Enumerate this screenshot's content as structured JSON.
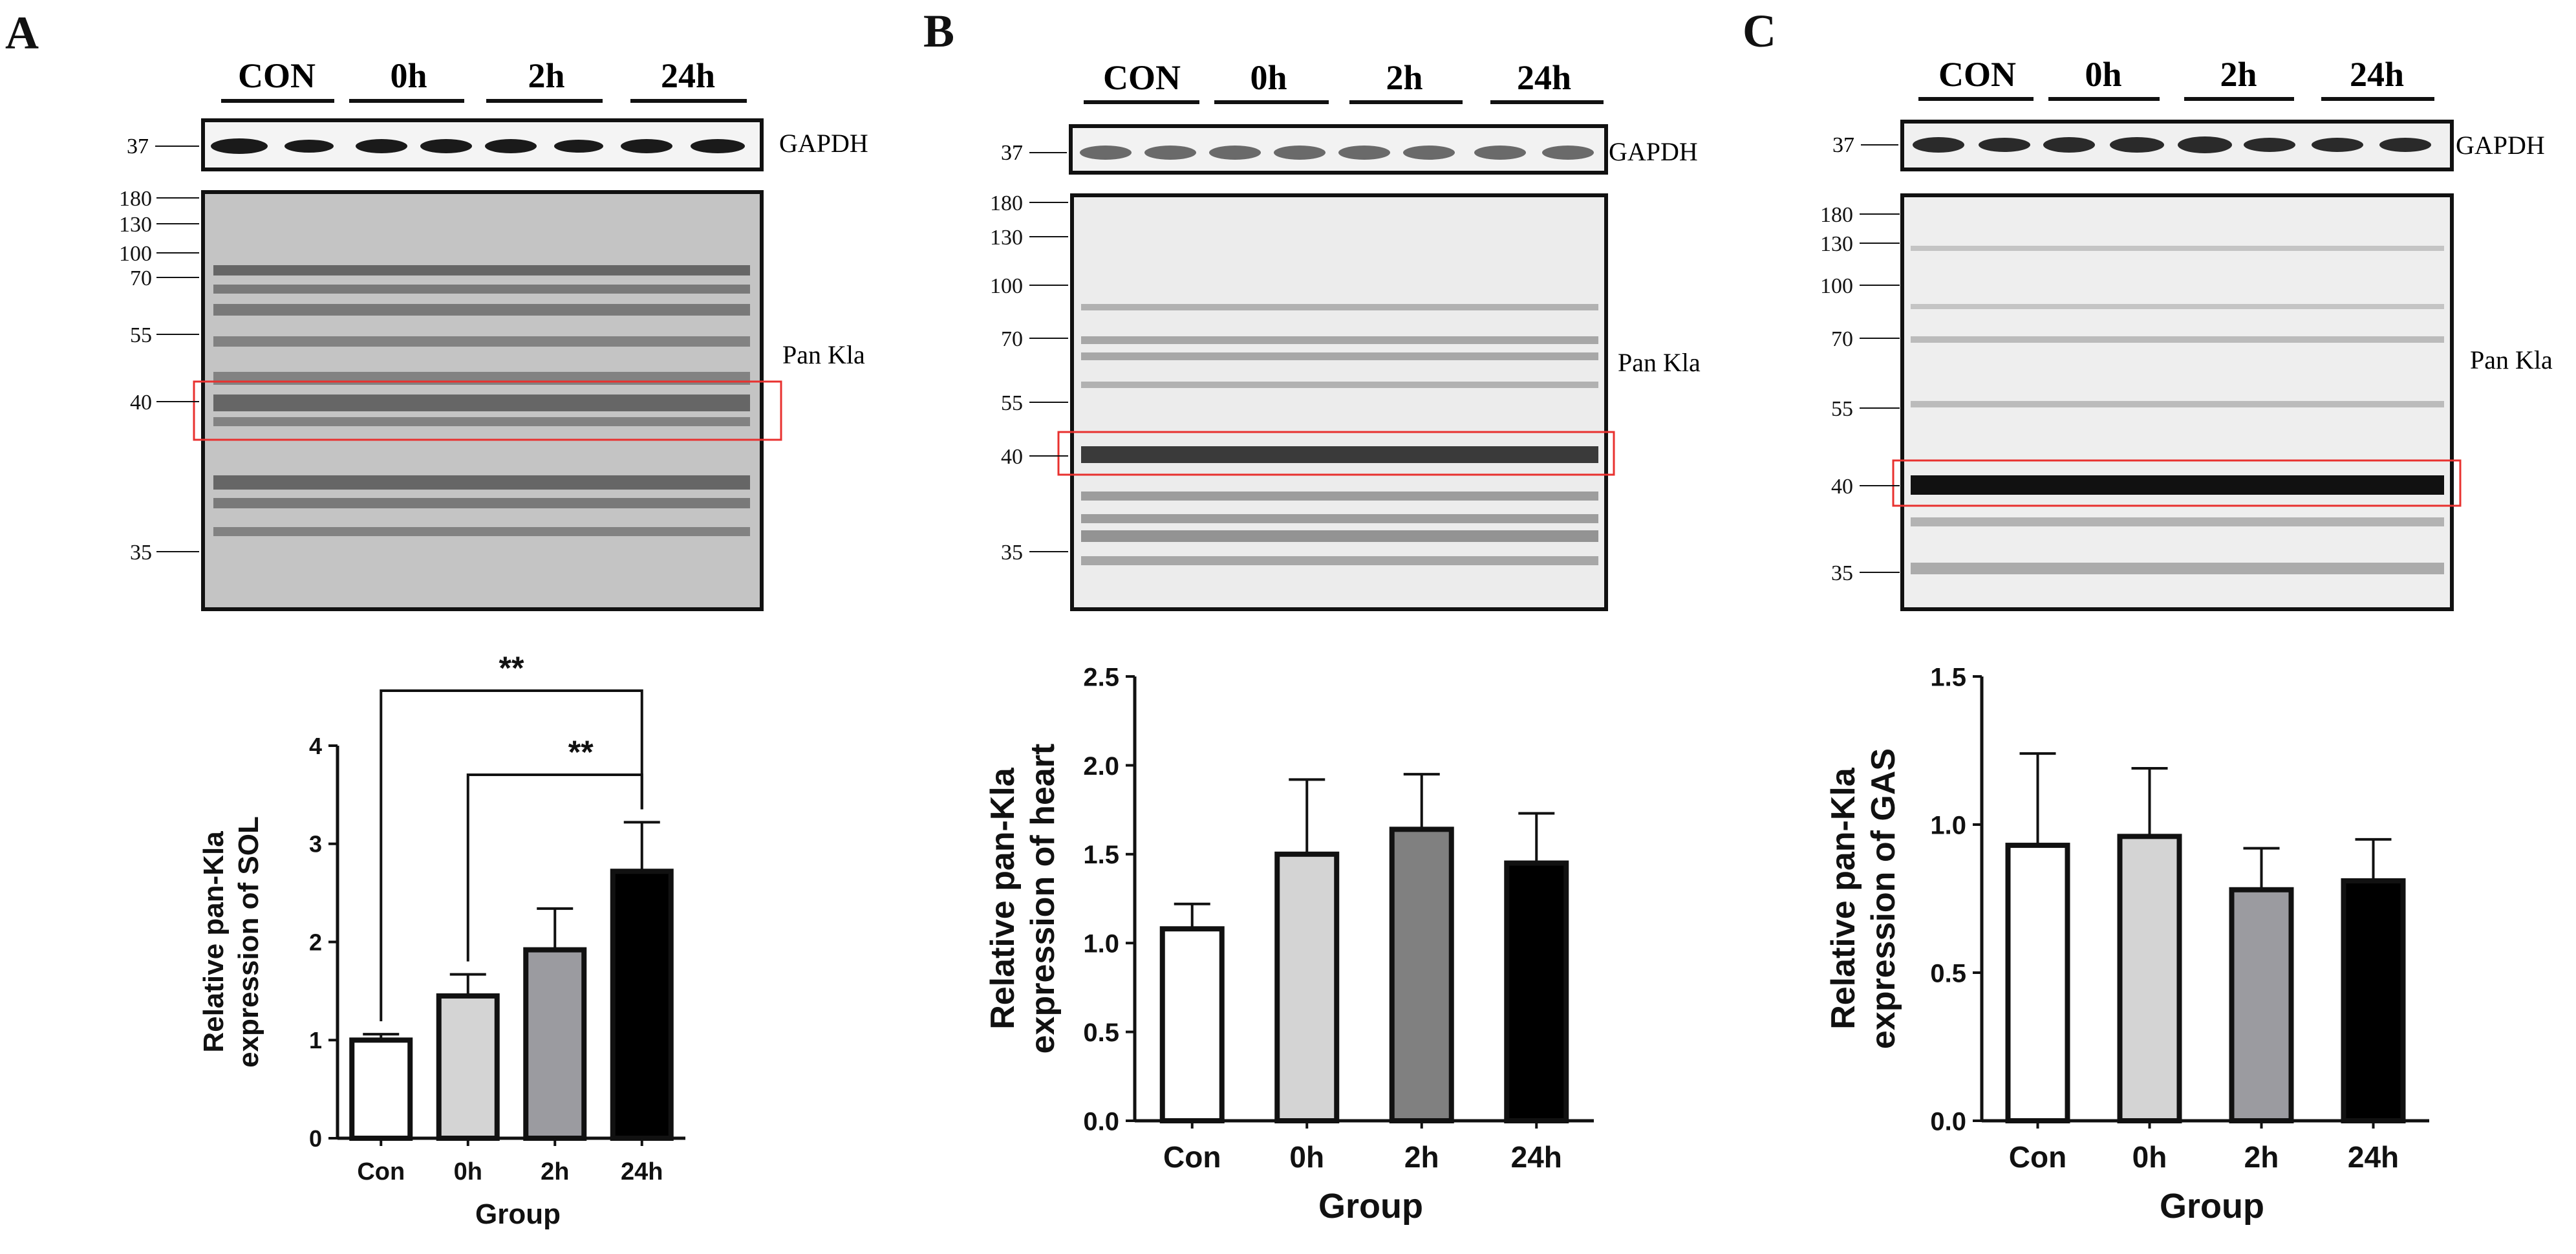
{
  "figure": {
    "background": "#ffffff",
    "band_box_color": "#e8312f",
    "ink": "#111111"
  },
  "panels": [
    {
      "letter": "A",
      "lanes": [
        "CON",
        "0h",
        "2h",
        "24h"
      ],
      "gapdh_label": "GAPDH",
      "gapdh_marker": "37",
      "blot_label": "Pan Kla",
      "markers": [
        "180",
        "130",
        "100",
        "70",
        "55",
        "40",
        "35"
      ]
    },
    {
      "letter": "B",
      "lanes": [
        "CON",
        "0h",
        "2h",
        "24h"
      ],
      "gapdh_label": "GAPDH",
      "gapdh_marker": "37",
      "blot_label": "Pan Kla",
      "markers": [
        "180",
        "130",
        "100",
        "70",
        "55",
        "40",
        "35"
      ]
    },
    {
      "letter": "C",
      "lanes": [
        "CON",
        "0h",
        "2h",
        "24h"
      ],
      "gapdh_label": "GAPDH",
      "gapdh_marker": "37",
      "blot_label": "Pan Kla",
      "markers": [
        "180",
        "130",
        "100",
        "70",
        "55",
        "40",
        "35"
      ]
    }
  ],
  "chart_data": [
    {
      "type": "bar",
      "panel": "A",
      "title": "",
      "categories": [
        "Con",
        "0h",
        "2h",
        "24h"
      ],
      "values": [
        1.0,
        1.45,
        1.92,
        2.72
      ],
      "errors": [
        0.06,
        0.22,
        0.42,
        0.5
      ],
      "colors": [
        "#ffffff",
        "#d4d4d4",
        "#9b9ba0",
        "#000000"
      ],
      "xlabel": "Group",
      "ylabel_lines": [
        "Relative pan-Kla",
        "expression of SOL"
      ],
      "ylim": [
        0,
        4
      ],
      "yticks": [
        "0",
        "1",
        "2",
        "3",
        "4"
      ],
      "significance": [
        {
          "from": "Con",
          "to": "24h",
          "label": "**"
        },
        {
          "from": "0h",
          "to": "24h",
          "label": "**"
        }
      ]
    },
    {
      "type": "bar",
      "panel": "B",
      "title": "",
      "categories": [
        "Con",
        "0h",
        "2h",
        "24h"
      ],
      "values": [
        1.08,
        1.5,
        1.64,
        1.45
      ],
      "errors": [
        0.14,
        0.42,
        0.31,
        0.28
      ],
      "colors": [
        "#ffffff",
        "#d4d4d4",
        "#808080",
        "#000000"
      ],
      "xlabel": "Group",
      "ylabel_lines": [
        "Relative pan-Kla",
        "expression of heart"
      ],
      "ylim": [
        0,
        2.5
      ],
      "yticks": [
        "0.0",
        "0.5",
        "1.0",
        "1.5",
        "2.0",
        "2.5"
      ],
      "significance": []
    },
    {
      "type": "bar",
      "panel": "C",
      "title": "",
      "categories": [
        "Con",
        "0h",
        "2h",
        "24h"
      ],
      "values": [
        0.93,
        0.96,
        0.78,
        0.81
      ],
      "errors": [
        0.31,
        0.23,
        0.14,
        0.14
      ],
      "colors": [
        "#ffffff",
        "#d4d4d4",
        "#9b9ba0",
        "#000000"
      ],
      "xlabel": "Group",
      "ylabel_lines": [
        "Relative pan-Kla",
        "expression of GAS"
      ],
      "ylim": [
        0,
        1.5
      ],
      "yticks": [
        "0.0",
        "0.5",
        "1.0",
        "1.5"
      ],
      "significance": []
    }
  ]
}
